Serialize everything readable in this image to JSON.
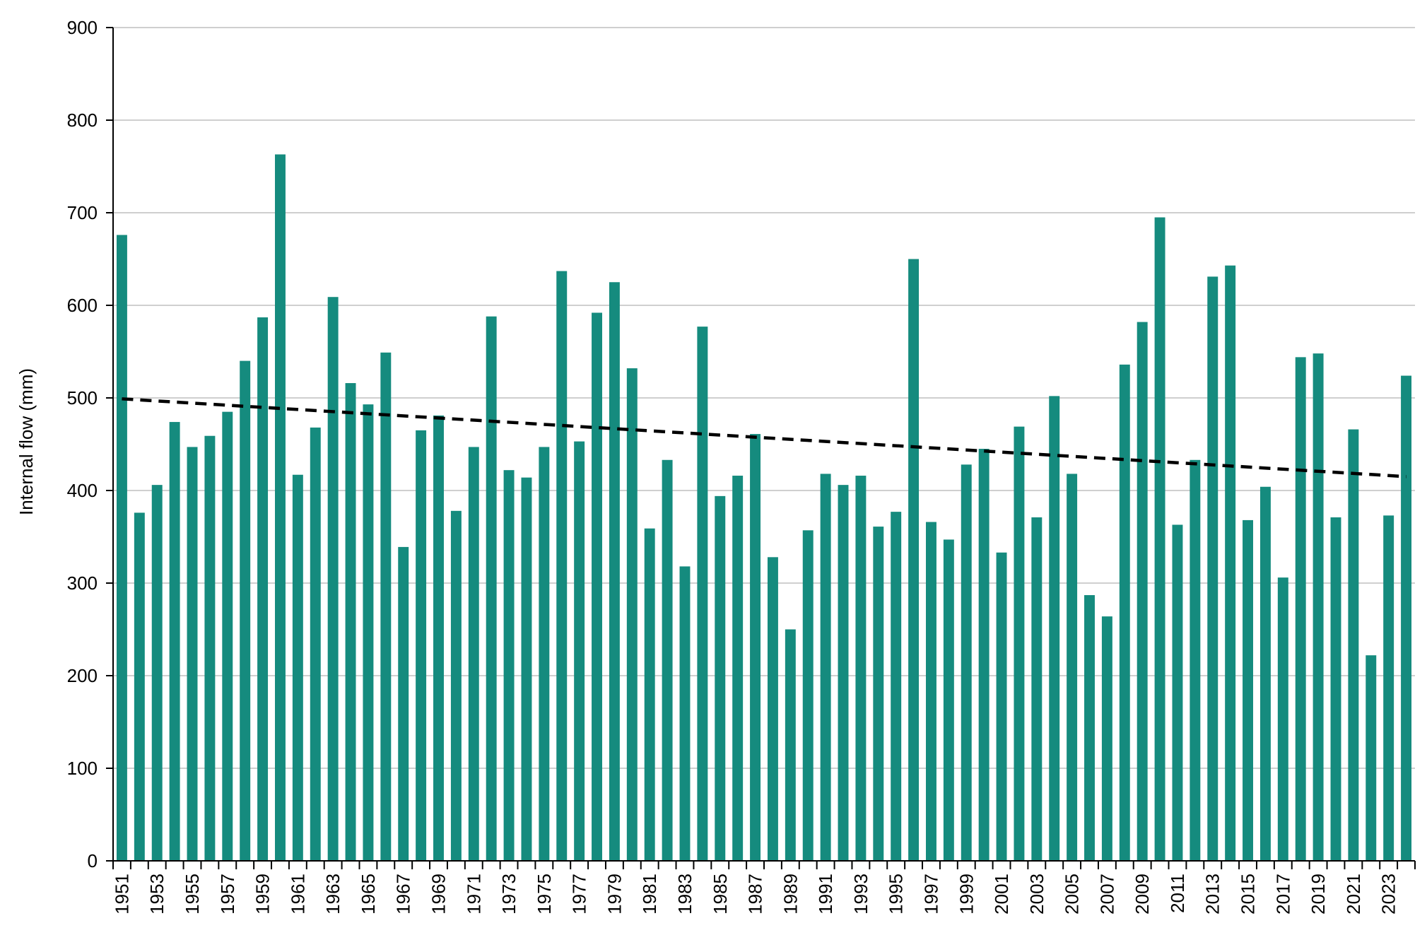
{
  "chart_data": {
    "type": "bar",
    "title": "",
    "xlabel": "",
    "ylabel": "Internal flow (mm)",
    "ylim": [
      0,
      900
    ],
    "yticks": [
      0,
      100,
      200,
      300,
      400,
      500,
      600,
      700,
      800,
      900
    ],
    "grid": "horizontal",
    "legend": "none",
    "x_tick_every": 2,
    "categories": [
      "1951",
      "1952",
      "1953",
      "1954",
      "1955",
      "1956",
      "1957",
      "1958",
      "1959",
      "1960",
      "1961",
      "1962",
      "1963",
      "1964",
      "1965",
      "1966",
      "1967",
      "1968",
      "1969",
      "1970",
      "1971",
      "1972",
      "1973",
      "1974",
      "1975",
      "1976",
      "1977",
      "1978",
      "1979",
      "1980",
      "1981",
      "1982",
      "1983",
      "1984",
      "1985",
      "1986",
      "1987",
      "1988",
      "1989",
      "1990",
      "1991",
      "1992",
      "1993",
      "1994",
      "1995",
      "1996",
      "1997",
      "1998",
      "1999",
      "2000",
      "2001",
      "2002",
      "2003",
      "2004",
      "2005",
      "2006",
      "2007",
      "2008",
      "2009",
      "2010",
      "2011",
      "2012",
      "2013",
      "2014",
      "2015",
      "2016",
      "2017",
      "2018",
      "2019",
      "2020",
      "2021",
      "2022",
      "2023",
      "2024"
    ],
    "values": [
      676,
      376,
      406,
      474,
      447,
      459,
      485,
      540,
      587,
      763,
      417,
      468,
      609,
      516,
      493,
      549,
      339,
      465,
      481,
      378,
      447,
      588,
      422,
      414,
      447,
      637,
      453,
      592,
      625,
      532,
      359,
      433,
      318,
      577,
      394,
      416,
      461,
      328,
      250,
      357,
      418,
      406,
      416,
      361,
      377,
      650,
      366,
      347,
      428,
      445,
      333,
      469,
      371,
      502,
      418,
      287,
      264,
      536,
      582,
      695,
      363,
      433,
      631,
      643,
      368,
      404,
      306,
      544,
      548,
      371,
      466,
      222,
      373,
      524
    ],
    "trend": {
      "start": 499,
      "end": 415,
      "style": "dashed"
    },
    "colors": {
      "bar": "#158b7e",
      "trend": "#000000",
      "grid": "#bfbfbf",
      "axis": "#000000"
    }
  }
}
